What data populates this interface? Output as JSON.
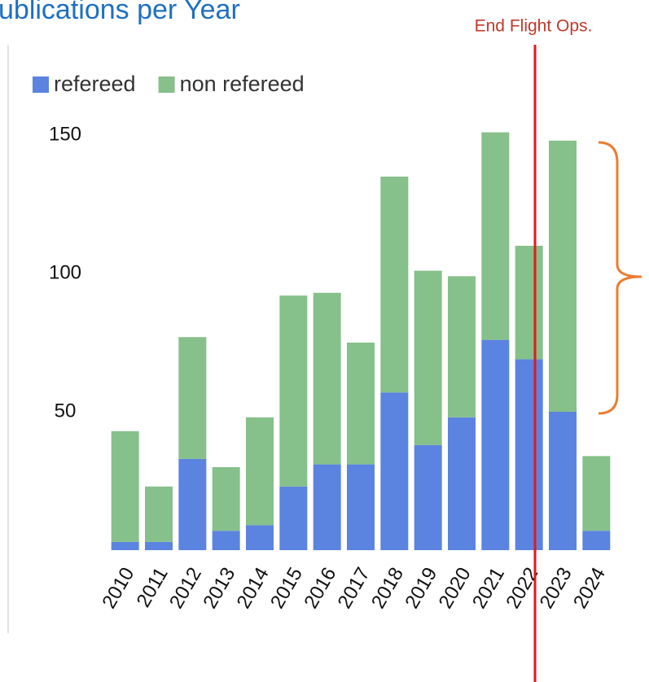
{
  "chart_data": {
    "type": "stacked_bar",
    "title": "ublications per Year",
    "annotation": "End Flight Ops.",
    "categories": [
      "2010",
      "2011",
      "2012",
      "2013",
      "2014",
      "2015",
      "2016",
      "2017",
      "2018",
      "2019",
      "2020",
      "2021",
      "2022",
      "2023",
      "2024"
    ],
    "series": [
      {
        "name": "refereed",
        "color": "#5b83e0",
        "values": [
          3,
          3,
          33,
          7,
          9,
          23,
          31,
          31,
          57,
          38,
          48,
          76,
          69,
          50,
          7
        ]
      },
      {
        "name": "non refereed",
        "color": "#86c08a",
        "values": [
          40,
          20,
          44,
          23,
          39,
          69,
          62,
          44,
          78,
          63,
          51,
          75,
          41,
          98,
          27
        ]
      }
    ],
    "ylim": [
      0,
      150
    ],
    "yticks": [
      50,
      100,
      150
    ],
    "grid": false,
    "legend": "top-left"
  }
}
